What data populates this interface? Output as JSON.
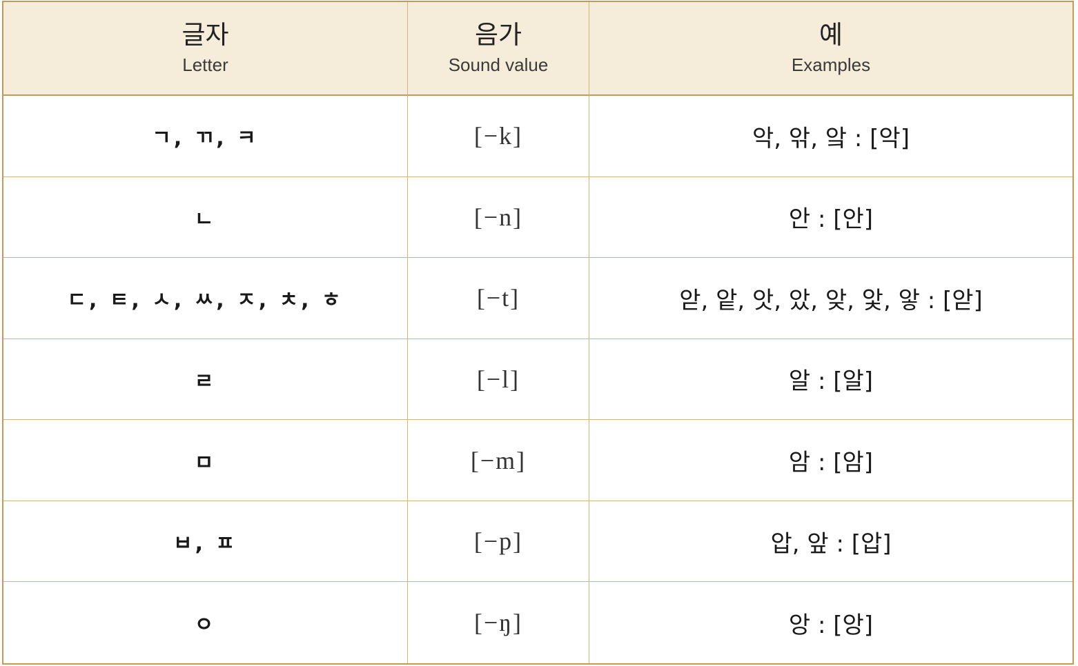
{
  "header": {
    "letter_ko": "글자",
    "letter_en": "Letter",
    "sound_ko": "음가",
    "sound_en": "Sound value",
    "example_ko": "예",
    "example_en": "Examples"
  },
  "rows": [
    {
      "letter": "ㄱ, ㄲ, ㅋ",
      "sound": "[−k]",
      "example": "악, 앆, 앜 : [악]"
    },
    {
      "letter": "ㄴ",
      "sound": "[−n]",
      "example": "안 : [안]"
    },
    {
      "letter": "ㄷ, ㅌ, ㅅ, ㅆ, ㅈ, ㅊ, ㅎ",
      "sound": "[−t]",
      "example": "앋, 앝, 앗, 았, 앚, 앛, 앟 : [앋]"
    },
    {
      "letter": "ㄹ",
      "sound": "[−l]",
      "example": "알 : [알]"
    },
    {
      "letter": "ㅁ",
      "sound": "[−m]",
      "example": "암 : [암]"
    },
    {
      "letter": "ㅂ, ㅍ",
      "sound": "[−p]",
      "example": "압, 앞 : [압]"
    },
    {
      "letter": "ㅇ",
      "sound": "[−ŋ]",
      "example": "앙 : [앙]"
    }
  ],
  "colors": {
    "header_bg": "#f6ecda",
    "border": "#c49a52"
  }
}
